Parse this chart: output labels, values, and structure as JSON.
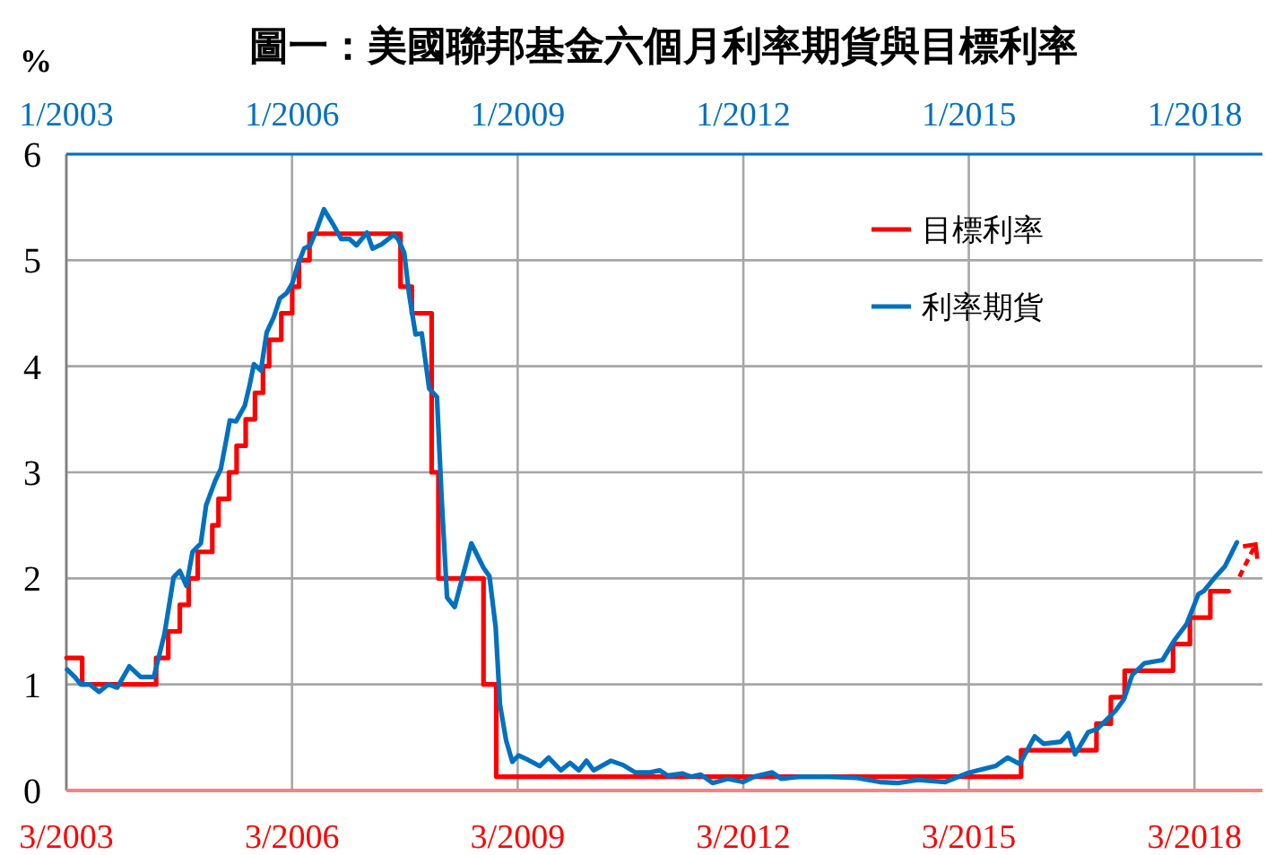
{
  "chart_data": {
    "type": "line",
    "title": "圖一：美國聯邦基金六個月利率期貨與目標利率",
    "ylabel": "%",
    "xlim": [
      "2003-03-01",
      "2019-01-25"
    ],
    "xticks": [
      {
        "value": "2003-03-01",
        "label": "3/2003"
      },
      {
        "value": "2006-03-01",
        "label": "3/2006"
      },
      {
        "value": "2009-03-01",
        "label": "3/2009"
      },
      {
        "value": "2012-03-01",
        "label": "3/2012"
      },
      {
        "value": "2015-03-01",
        "label": "3/2015"
      },
      {
        "value": "2018-03-01",
        "label": "3/2018"
      }
    ],
    "x2lim": [
      "2003-01-01",
      "2018-11-25"
    ],
    "x2ticks": [
      {
        "value": "2003-01-01",
        "label": "1/2003"
      },
      {
        "value": "2006-01-01",
        "label": "1/2006"
      },
      {
        "value": "2009-01-01",
        "label": "1/2009"
      },
      {
        "value": "2012-01-01",
        "label": "1/2012"
      },
      {
        "value": "2015-01-01",
        "label": "1/2015"
      },
      {
        "value": "2018-01-01",
        "label": "1/2018"
      }
    ],
    "ylim": [
      0,
      6
    ],
    "yticks": [
      0,
      1,
      2,
      3,
      4,
      5,
      6
    ],
    "grid": true,
    "legend": "top right",
    "series": [
      {
        "name": "目標利率",
        "type": "step",
        "color": "#ff0000",
        "x": [
          "2003-03-02",
          "2003-05-17",
          "2004-05-10",
          "2004-07-08",
          "2004-09-02",
          "2004-10-15",
          "2004-11-28",
          "2005-02-07",
          "2005-03-09",
          "2005-04-29",
          "2005-06-05",
          "2005-07-19",
          "2005-09-02",
          "2005-10-11",
          "2005-11-10",
          "2006-01-08",
          "2006-03-02",
          "2006-04-04",
          "2006-05-25",
          "2007-08-10",
          "2007-10-04",
          "2008-01-08",
          "2008-02-10",
          "2008-09-16",
          "2008-11-17",
          "2015-11-10",
          "2016-11-10",
          "2017-01-19",
          "2017-03-27",
          "2017-11-17",
          "2018-02-07",
          "2018-05-17",
          "2018-08-14"
        ],
        "values": [
          1.25,
          1.0,
          1.25,
          1.5,
          1.75,
          2.0,
          2.25,
          2.5,
          2.75,
          3.0,
          3.25,
          3.5,
          3.75,
          4.0,
          4.25,
          4.5,
          4.75,
          5.0,
          5.25,
          4.75,
          4.5,
          3.0,
          2.0,
          1.0,
          0.13,
          0.38,
          0.63,
          0.88,
          1.13,
          1.38,
          1.63,
          1.88,
          1.88
        ]
      },
      {
        "name": "利率期貨",
        "type": "line",
        "color": "#0070c0",
        "x": [
          "2003-03-05",
          "2003-04-11",
          "2003-05-10",
          "2003-06-23",
          "2003-08-07",
          "2003-09-20",
          "2003-11-03",
          "2004-01-01",
          "2004-02-25",
          "2004-04-29",
          "2004-06-20",
          "2004-08-03",
          "2004-09-02",
          "2004-10-04",
          "2004-11-03",
          "2004-12-13",
          "2005-01-08",
          "2005-02-21",
          "2005-03-20",
          "2005-04-19",
          "2005-05-03",
          "2005-06-02",
          "2005-07-15",
          "2005-08-07",
          "2005-08-28",
          "2005-10-01",
          "2005-10-29",
          "2005-12-02",
          "2006-01-01",
          "2006-02-03",
          "2006-03-02",
          "2006-04-01",
          "2006-04-29",
          "2006-05-28",
          "2006-06-27",
          "2006-08-03",
          "2006-09-16",
          "2006-10-26",
          "2006-12-05",
          "2007-01-08",
          "2007-02-28",
          "2007-03-27",
          "2007-05-10",
          "2007-07-08",
          "2007-07-29",
          "2007-08-28",
          "2007-09-20",
          "2007-10-22",
          "2007-11-21",
          "2007-12-27",
          "2008-02-03",
          "2008-02-25",
          "2008-03-23",
          "2008-04-29",
          "2008-07-19",
          "2008-09-16",
          "2008-10-15",
          "2008-11-14",
          "2008-12-05",
          "2009-01-04",
          "2009-02-03",
          "2009-03-05",
          "2009-04-19",
          "2009-06-16",
          "2009-07-29",
          "2009-09-27",
          "2009-11-10",
          "2009-12-23",
          "2010-01-29",
          "2010-03-05",
          "2010-05-28",
          "2010-07-26",
          "2010-09-23",
          "2010-12-05",
          "2011-01-19",
          "2011-02-28",
          "2011-05-10",
          "2011-06-23",
          "2011-08-07",
          "2011-10-04",
          "2011-12-16",
          "2012-02-28",
          "2012-04-22",
          "2012-07-19",
          "2012-09-02",
          "2012-11-28",
          "2013-04-19",
          "2013-08-28",
          "2013-12-23",
          "2014-03-20",
          "2014-06-27",
          "2014-11-07",
          "2015-02-17",
          "2015-04-15",
          "2015-07-08",
          "2015-09-05",
          "2015-11-03",
          "2016-01-15",
          "2016-02-28",
          "2016-05-21",
          "2016-06-27",
          "2016-07-29",
          "2016-10-01",
          "2016-11-14",
          "2017-02-10",
          "2017-03-23",
          "2017-05-03",
          "2017-07-01",
          "2017-09-27",
          "2017-11-25",
          "2018-01-22",
          "2018-03-20",
          "2018-04-15",
          "2018-06-13",
          "2018-07-26",
          "2018-09-23"
        ],
        "values": [
          1.14,
          1.07,
          1.0,
          1.0,
          0.93,
          1.0,
          0.97,
          1.17,
          1.07,
          1.07,
          1.48,
          2.01,
          2.07,
          1.93,
          2.25,
          2.33,
          2.69,
          2.92,
          3.03,
          3.34,
          3.49,
          3.48,
          3.63,
          3.82,
          4.02,
          3.96,
          4.32,
          4.46,
          4.64,
          4.69,
          4.78,
          4.97,
          5.11,
          5.14,
          5.28,
          5.48,
          5.34,
          5.2,
          5.2,
          5.14,
          5.26,
          5.11,
          5.15,
          5.24,
          5.2,
          5.07,
          4.69,
          4.3,
          4.31,
          3.79,
          3.71,
          2.78,
          1.82,
          1.73,
          2.33,
          2.1,
          2.02,
          1.54,
          0.81,
          0.47,
          0.27,
          0.33,
          0.29,
          0.23,
          0.31,
          0.19,
          0.26,
          0.19,
          0.28,
          0.19,
          0.28,
          0.24,
          0.17,
          0.17,
          0.19,
          0.14,
          0.16,
          0.13,
          0.15,
          0.07,
          0.11,
          0.08,
          0.13,
          0.17,
          0.11,
          0.13,
          0.13,
          0.12,
          0.08,
          0.07,
          0.1,
          0.08,
          0.16,
          0.19,
          0.23,
          0.31,
          0.25,
          0.51,
          0.44,
          0.46,
          0.54,
          0.34,
          0.55,
          0.58,
          0.75,
          0.86,
          1.09,
          1.2,
          1.23,
          1.42,
          1.57,
          1.85,
          1.88,
          2.02,
          2.11,
          2.34
        ]
      }
    ]
  }
}
